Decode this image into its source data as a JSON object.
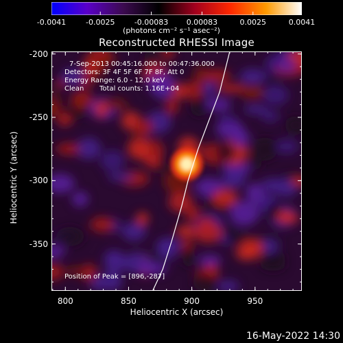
{
  "colorbar": {
    "ticks": [
      "-0.0041",
      "-0.0025",
      "-0.00083",
      "0.00083",
      "0.0025",
      "0.0041"
    ],
    "tick_values": [
      -0.0041,
      -0.0025,
      -0.00083,
      0.00083,
      0.0025,
      0.0041
    ],
    "range": [
      -0.0041,
      0.0041
    ],
    "unit_label": "(photons cm⁻² s⁻¹ asec⁻²)",
    "colors": [
      "#0000ff",
      "#5a00c8",
      "#3c0a50",
      "#000000",
      "#a0001e",
      "#ff2800",
      "#ff9a00",
      "#ffffff"
    ]
  },
  "chart_data": {
    "type": "heatmap",
    "title": "Reconstructed RHESSI Image",
    "xlabel": "Heliocentric X (arcsec)",
    "ylabel": "Heliocentric Y (arcsec)",
    "xlim": [
      789,
      987
    ],
    "ylim": [
      -387,
      -198
    ],
    "x_ticks": [
      "800",
      "850",
      "900",
      "950"
    ],
    "x_tick_values": [
      800,
      850,
      900,
      950
    ],
    "y_ticks": [
      "-200",
      "-250",
      "-300",
      "-350"
    ],
    "y_tick_values": [
      -200,
      -250,
      -300,
      -350
    ],
    "peak": {
      "x": 896,
      "y": -287
    },
    "limb_curve": [
      [
        930,
        -198
      ],
      [
        922,
        -230
      ],
      [
        905,
        -275
      ],
      [
        897,
        -300
      ],
      [
        892,
        -320
      ],
      [
        884,
        -348
      ],
      [
        877,
        -370
      ],
      [
        869,
        -387
      ]
    ],
    "annotations": {
      "time": "7-Sep-2013 00:45:16.000 to 00:47:36.000",
      "detectors": "Detectors: 3F 4F 5F 6F 7F 8F, Att 0",
      "energy": "Energy Range: 6.0 - 12.0 keV",
      "method": "Clean",
      "counts": "Total counts: 1.16E+04",
      "peak_text": "Position of Peak = [896,-287]"
    }
  },
  "footer": {
    "timestamp": "16-May-2022 14:30"
  }
}
